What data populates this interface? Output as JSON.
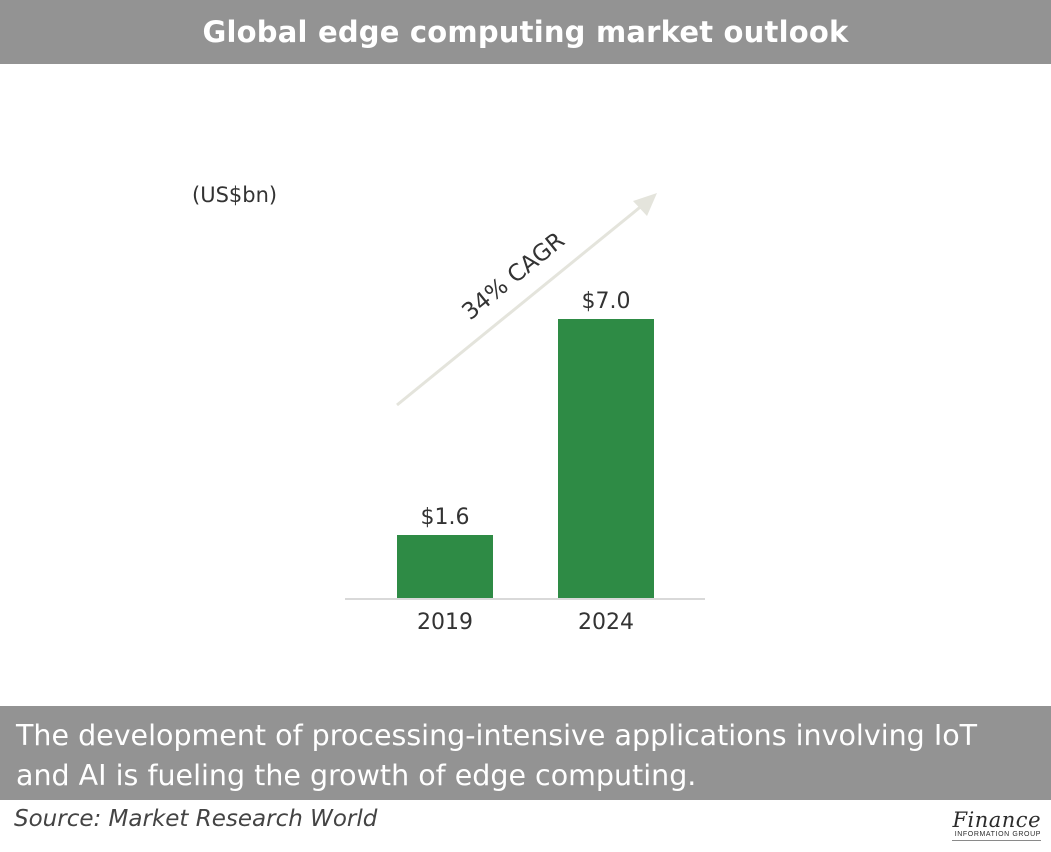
{
  "header": {
    "title": "Global edge computing market outlook"
  },
  "chart_data": {
    "type": "bar",
    "categories": [
      "2019",
      "2024"
    ],
    "values": [
      1.6,
      7.0
    ],
    "value_labels": [
      "$1.6",
      "$7.0"
    ],
    "unit_label": "(US$bn)",
    "annotation": "34% CAGR",
    "ylim": [
      0,
      7.0
    ],
    "grid": false,
    "legend": "none",
    "bar_color": "#2e8b45",
    "arrow_color": "#e4e4dc"
  },
  "caption": {
    "text": "The development of processing-intensive applications involving IoT and AI is fueling the growth of edge computing."
  },
  "source": {
    "text": "Source: Market Research World"
  },
  "logo": {
    "main": "Finance",
    "sub": "INFORMATION GROUP"
  }
}
